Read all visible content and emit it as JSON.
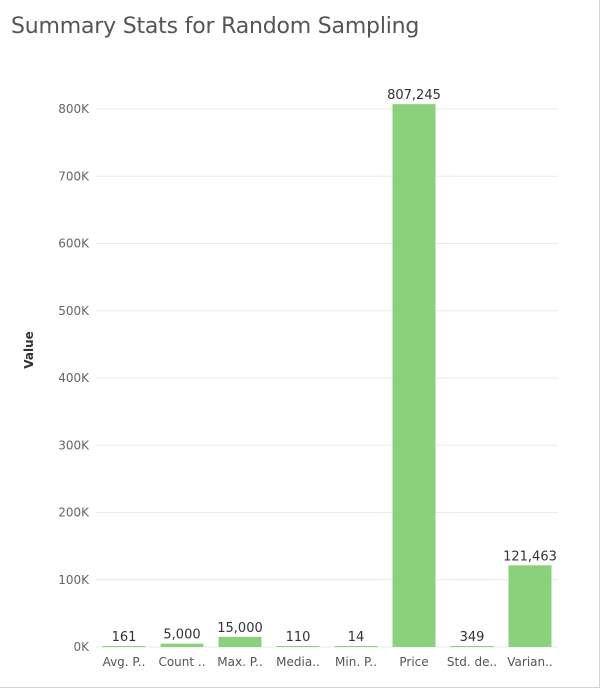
{
  "chart_data": {
    "type": "bar",
    "title": "Summary Stats for Random Sampling",
    "xlabel": "",
    "ylabel": "Value",
    "ylim": [
      0,
      850000
    ],
    "yticks": [
      0,
      100000,
      200000,
      300000,
      400000,
      500000,
      600000,
      700000,
      800000
    ],
    "ytick_labels": [
      "0K",
      "100K",
      "200K",
      "300K",
      "400K",
      "500K",
      "600K",
      "700K",
      "800K"
    ],
    "grid": true,
    "categories": [
      "Avg. P..",
      "Count ..",
      "Max. P..",
      "Media..",
      "Min. P..",
      "Price",
      "Std. de..",
      "Varian.."
    ],
    "values": [
      161,
      5000,
      15000,
      110,
      14,
      807245,
      349,
      121463
    ],
    "value_labels": [
      "161",
      "5,000",
      "15,000",
      "110",
      "14",
      "807,245",
      "349",
      "121,463"
    ],
    "bar_color": "#8bd17c",
    "grid_color": "#ebebeb"
  }
}
